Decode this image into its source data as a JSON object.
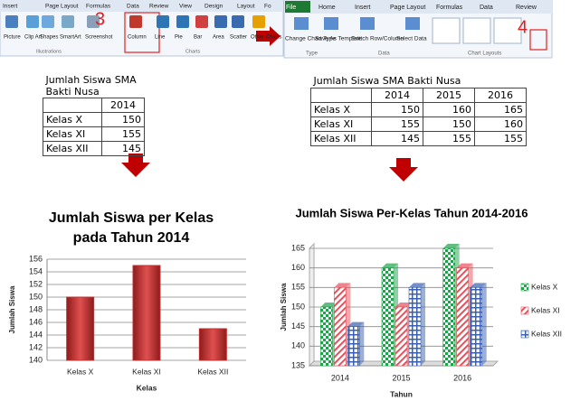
{
  "ribbon_left": {
    "tabs": [
      "Insert",
      "Page Layout",
      "Formulas",
      "Data",
      "Review",
      "View",
      "Design",
      "Layout",
      "Fo"
    ],
    "buttons": [
      "Picture",
      "Clip Art",
      "Shapes",
      "SmartArt",
      "Screenshot",
      "Column",
      "Line",
      "Pie",
      "Bar",
      "Area",
      "Scatter",
      "Other Charts"
    ],
    "groups": [
      "Illustrations",
      "Charts"
    ],
    "step": "3"
  },
  "ribbon_right": {
    "tabs": [
      "File",
      "Home",
      "Insert",
      "Page Layout",
      "Formulas",
      "Data",
      "Review"
    ],
    "buttons": [
      "Change Chart Type",
      "Save As Template",
      "Switch Row/Column",
      "Select Data"
    ],
    "groups": [
      "Type",
      "Data",
      "Chart Layouts"
    ],
    "step": "4"
  },
  "table_left": {
    "title": "Jumlah Siswa SMA Bakti Nusa",
    "header": [
      "2014"
    ],
    "rows": [
      [
        "Kelas X",
        "150"
      ],
      [
        "Kelas XI",
        "155"
      ],
      [
        "Kelas XII",
        "145"
      ]
    ]
  },
  "table_right": {
    "title": "Jumlah Siswa SMA Bakti Nusa",
    "header": [
      "2014",
      "2015",
      "2016"
    ],
    "rows": [
      [
        "Kelas X",
        "150",
        "160",
        "165"
      ],
      [
        "Kelas XI",
        "155",
        "150",
        "160"
      ],
      [
        "Kelas XII",
        "145",
        "155",
        "155"
      ]
    ]
  },
  "chart_data": [
    {
      "type": "bar",
      "title": [
        "Jumlah Siswa per Kelas",
        "pada Tahun 2014"
      ],
      "categories": [
        "Kelas X",
        "Kelas XI",
        "Kelas XII"
      ],
      "values": [
        150,
        155,
        145
      ],
      "color": "#c0302e",
      "ylim": [
        140,
        156
      ],
      "yticks": [
        140,
        142,
        144,
        146,
        148,
        150,
        152,
        154,
        156
      ],
      "grid": true,
      "x_label": "Kelas",
      "y_label": "Jumlah Siswa"
    },
    {
      "type": "bar3d",
      "title": "Jumlah Siswa Per-Kelas  Tahun 2014-2016",
      "categories": [
        "2014",
        "2015",
        "2016"
      ],
      "series": [
        {
          "name": "Kelas X",
          "color": "#1fa34a",
          "values": [
            150,
            160,
            165
          ]
        },
        {
          "name": "Kelas XI",
          "color": "#e8505b",
          "values": [
            155,
            150,
            160
          ]
        },
        {
          "name": "Kelas XII",
          "color": "#3a5fb0",
          "values": [
            145,
            155,
            155
          ]
        }
      ],
      "ylim": [
        135,
        165
      ],
      "yticks": [
        135,
        140,
        145,
        150,
        155,
        160,
        165
      ],
      "grid": true,
      "x_label": "Tahun",
      "y_label": "Jumlah Siswa",
      "legend": "right"
    }
  ]
}
